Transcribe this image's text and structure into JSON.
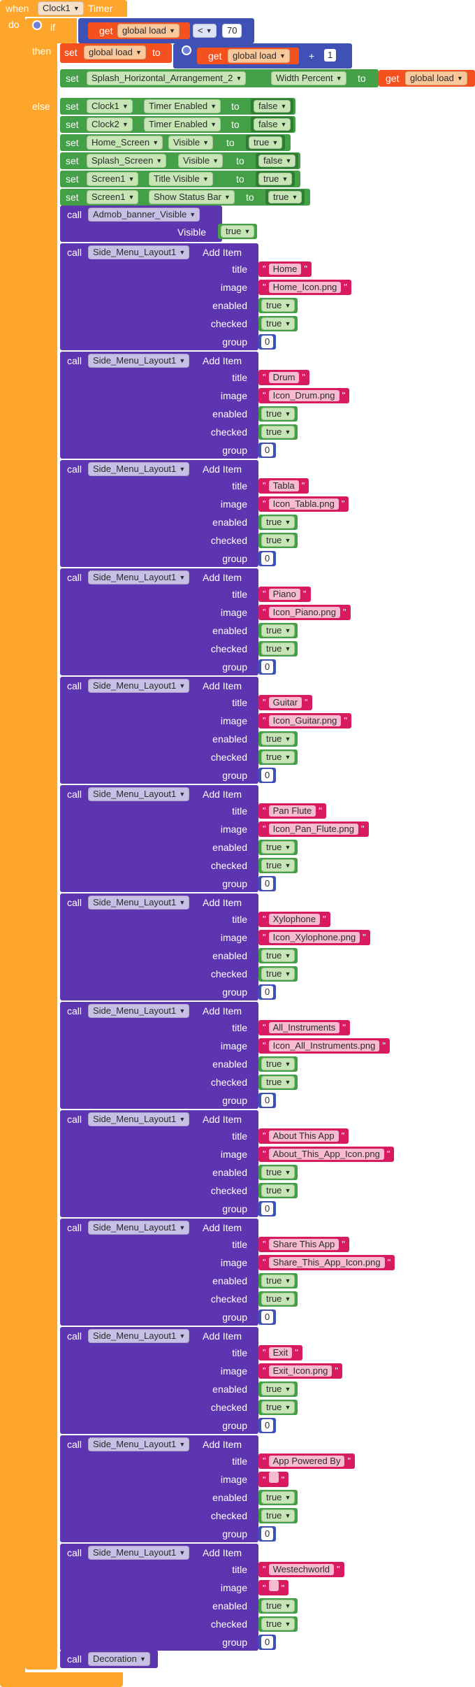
{
  "event": {
    "when_label": "when",
    "component": "Clock1",
    "event_label": "Timer",
    "do_label": "do"
  },
  "if_block": {
    "if_label": "if",
    "then_label": "then",
    "else_label": "else",
    "get_label": "get",
    "var_name": "global load",
    "operator": "<",
    "compare_value": "70",
    "set_label": "set",
    "to_label": "to",
    "plus_label": "+",
    "increment": "1"
  },
  "then_statements": {
    "row2": {
      "set": "set",
      "component": "Splash_Horizontal_Arrangement_2",
      "property": "Width Percent",
      "to": "to",
      "get": "get",
      "var": "global load"
    }
  },
  "else_statements": [
    {
      "component": "Clock1",
      "property": "Timer Enabled",
      "value": "false"
    },
    {
      "component": "Clock2",
      "property": "Timer Enabled",
      "value": "false"
    },
    {
      "component": "Home_Screen",
      "property": "Visible",
      "value": "true"
    },
    {
      "component": "Splash_Screen",
      "property": "Visible",
      "value": "false"
    },
    {
      "component": "Screen1",
      "property": "Title Visible",
      "value": "true"
    },
    {
      "component": "Screen1",
      "property": "Show Status Bar",
      "value": "true"
    }
  ],
  "labels": {
    "set": "set",
    "to": "to",
    "call": "call",
    "visible": "Visible",
    "add_item": "Add Item",
    "title": "title",
    "image": "image",
    "enabled": "enabled",
    "checked": "checked",
    "group": "group",
    "true": "true",
    "false": "false"
  },
  "admob": {
    "call": "call",
    "method": "Admob_banner_Visible",
    "visible_label": "Visible",
    "value": "true"
  },
  "menu_component": "Side_Menu_Layout1",
  "menu_items": [
    {
      "title": "Home",
      "image": "Home_Icon.png",
      "enabled": "true",
      "checked": "true",
      "group": "0"
    },
    {
      "title": "Drum",
      "image": "Icon_Drum.png",
      "enabled": "true",
      "checked": "true",
      "group": "0"
    },
    {
      "title": "Tabla",
      "image": "Icon_Tabla.png",
      "enabled": "true",
      "checked": "true",
      "group": "0"
    },
    {
      "title": "Piano",
      "image": "Icon_Piano.png",
      "enabled": "true",
      "checked": "true",
      "group": "0"
    },
    {
      "title": "Guitar",
      "image": "Icon_Guitar.png",
      "enabled": "true",
      "checked": "true",
      "group": "0"
    },
    {
      "title": "Pan Flute",
      "image": "Icon_Pan_Flute.png",
      "enabled": "true",
      "checked": "true",
      "group": "0"
    },
    {
      "title": "Xylophone",
      "image": "Icon_Xylophone.png",
      "enabled": "true",
      "checked": "true",
      "group": "0"
    },
    {
      "title": "All_Instruments",
      "image": "Icon_All_Instruments.png",
      "enabled": "true",
      "checked": "true",
      "group": "0"
    },
    {
      "title": "About This App",
      "image": "About_This_App_Icon.png",
      "enabled": "true",
      "checked": "true",
      "group": "0"
    },
    {
      "title": "Share This App",
      "image": "Share_This_App_Icon.png",
      "enabled": "true",
      "checked": "true",
      "group": "0"
    },
    {
      "title": "Exit",
      "image": "Exit_Icon.png",
      "enabled": "true",
      "checked": "true",
      "group": "0"
    },
    {
      "title": "App Powered By",
      "image": "",
      "enabled": "true",
      "checked": "true",
      "group": "0"
    },
    {
      "title": "Westechworld",
      "image": "",
      "enabled": "true",
      "checked": "true",
      "group": "0"
    }
  ],
  "final_call": {
    "call": "call",
    "procedure": "Decoration"
  },
  "colors": {
    "event": "#fea62b",
    "control": "#fea62b",
    "variable": "#f4511e",
    "math": "#3f51b5",
    "component": "#43a047",
    "call": "#5e35b1",
    "text": "#d81b60",
    "logic": "#43a047",
    "dark_green": "#2e7d32"
  }
}
